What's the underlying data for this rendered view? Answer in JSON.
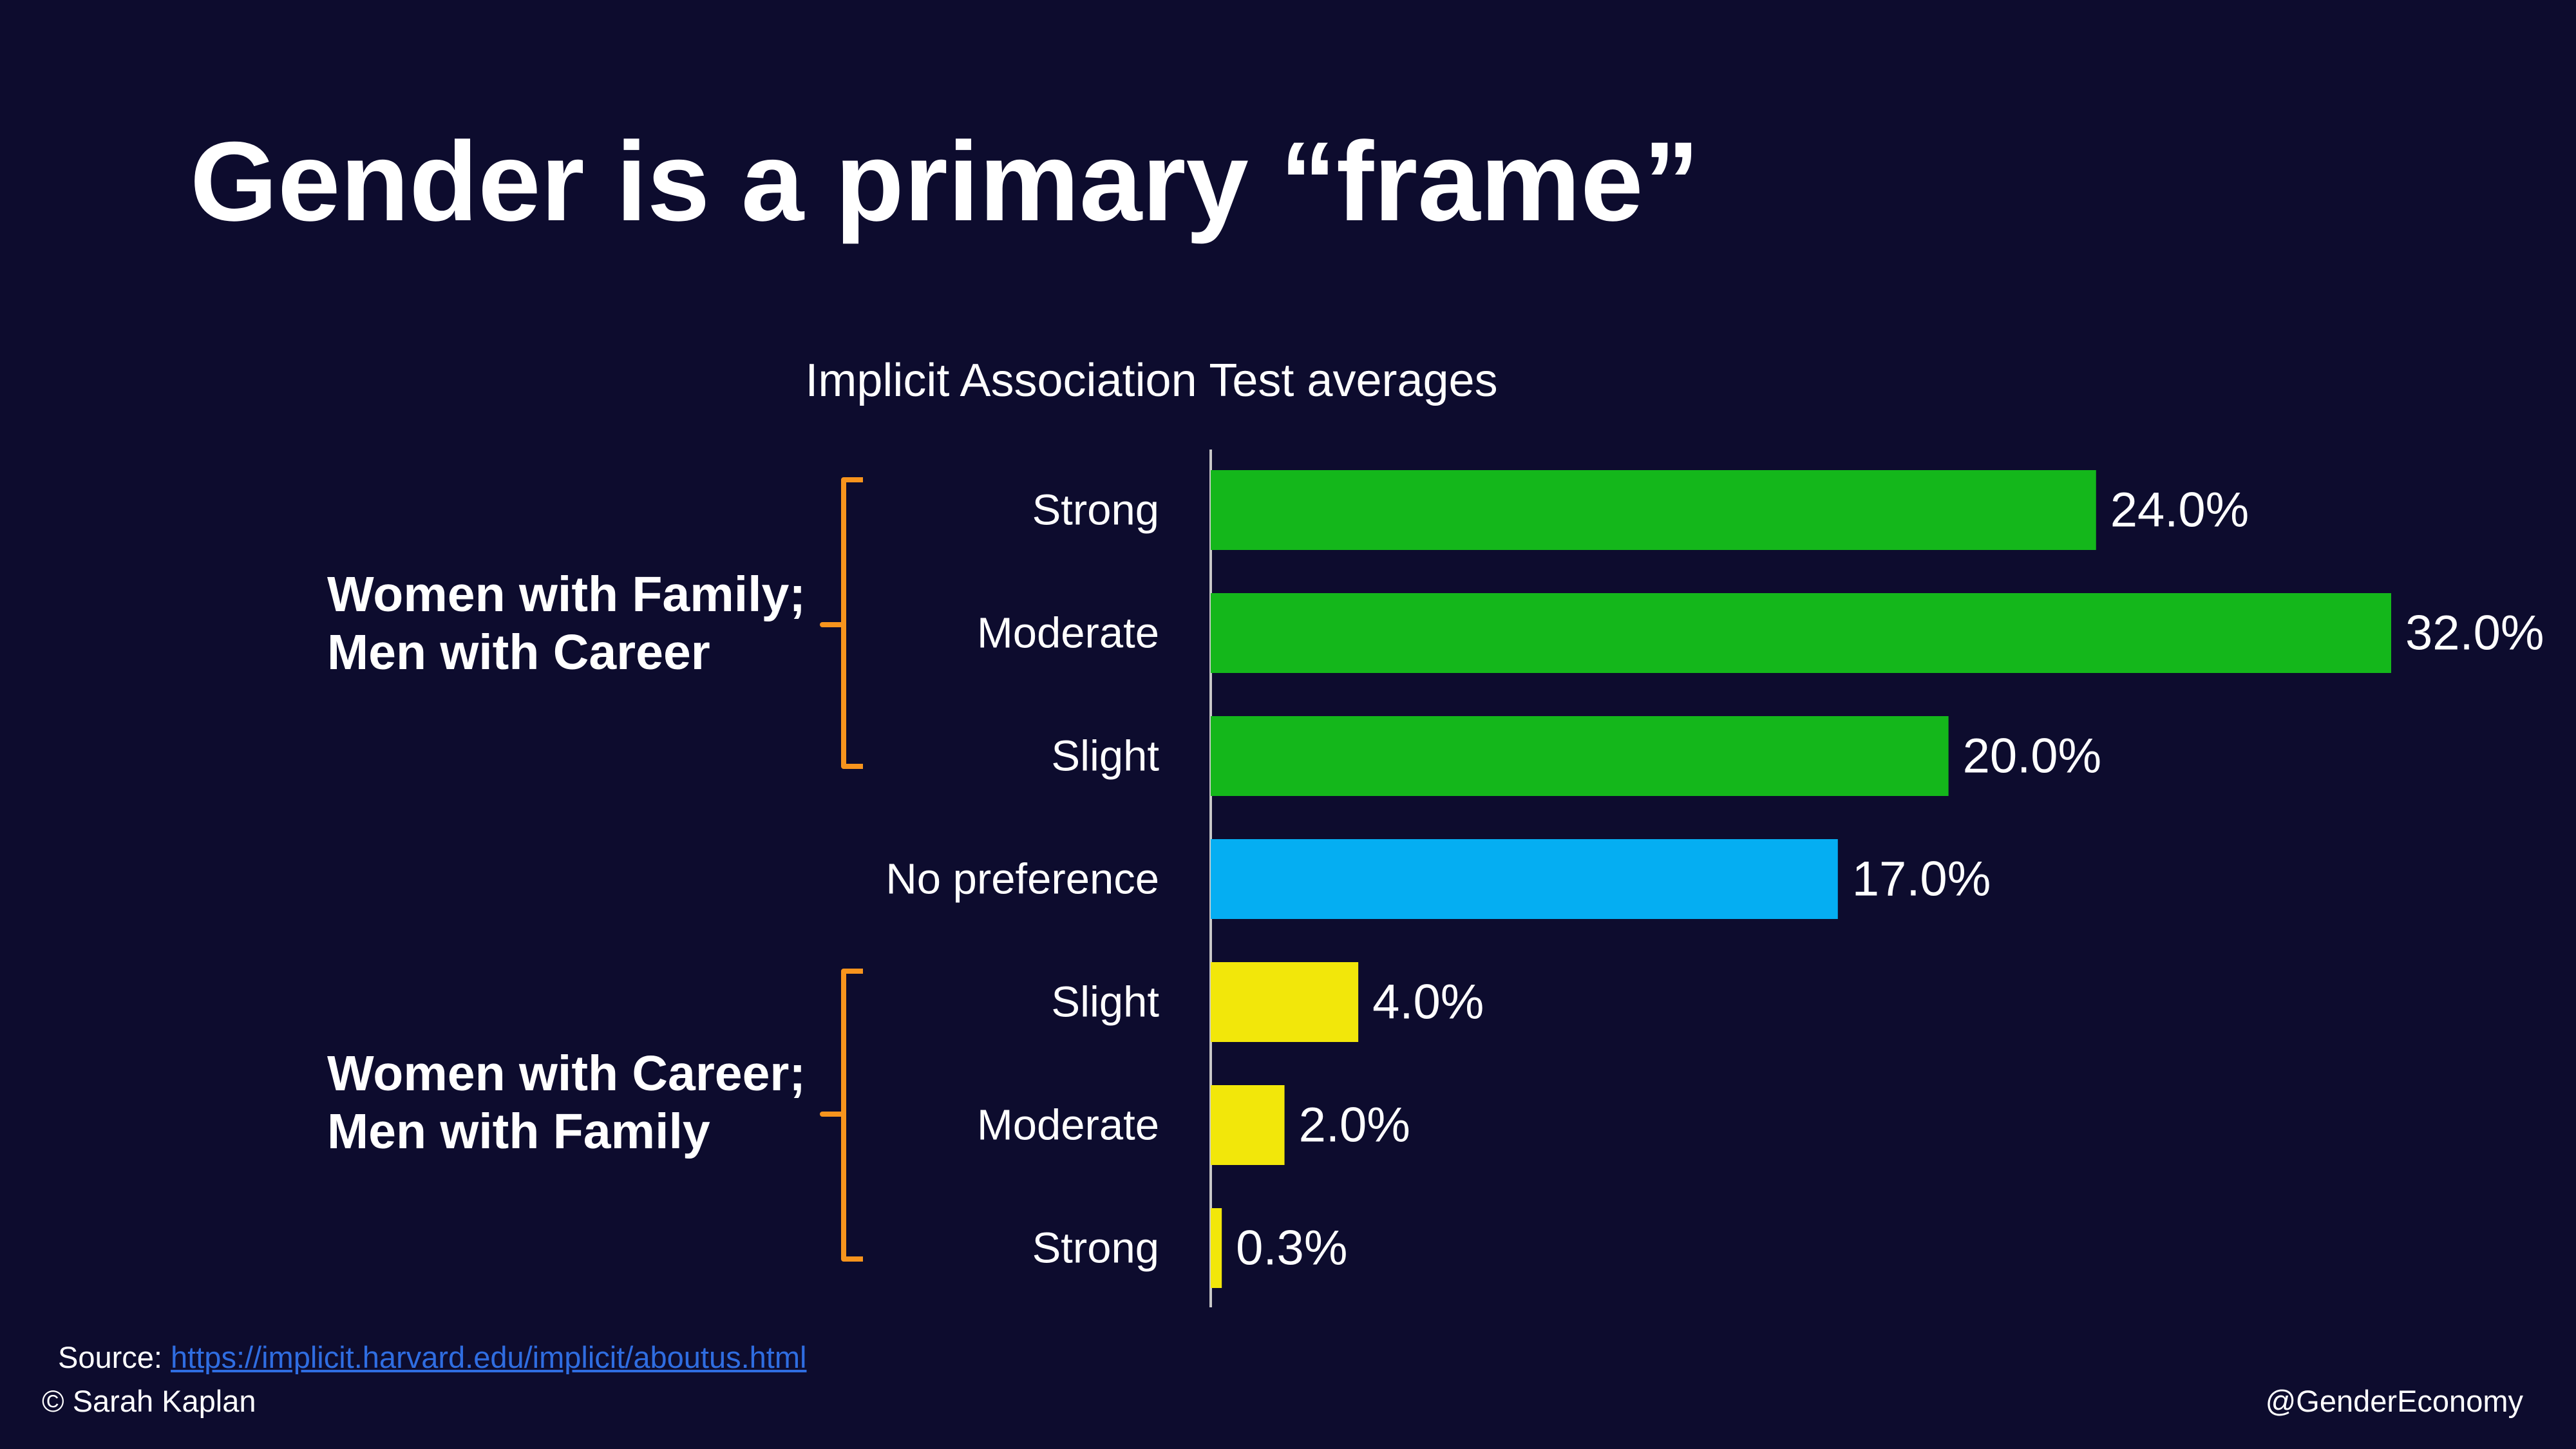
{
  "title": "Gender is a primary “frame”",
  "groups": [
    {
      "line1": "Women with Family;",
      "line2": "Men with Career"
    },
    {
      "line1": "Women with Career;",
      "line2": "Men with Family"
    }
  ],
  "source": {
    "prefix": "Source: ",
    "url": "https://implicit.harvard.edu/implicit/aboutus.html"
  },
  "copyright": "© Sarah Kaplan",
  "handle": "@GenderEconomy",
  "colors": {
    "background": "#0d0c2e",
    "family_career": "#14b71b",
    "no_preference": "#05aef2",
    "career_family": "#f2e70a",
    "bracket": "#f7941d",
    "link": "#2f6de1"
  },
  "chart_data": {
    "type": "bar",
    "orientation": "horizontal",
    "title": "Implicit Association Test averages",
    "categories": [
      "Strong",
      "Moderate",
      "Slight",
      "No preference",
      "Slight",
      "Moderate",
      "Strong"
    ],
    "values": [
      24.0,
      32.0,
      20.0,
      17.0,
      4.0,
      2.0,
      0.3
    ],
    "data_labels": [
      "24.0%",
      "32.0%",
      "20.0%",
      "17.0%",
      "4.0%",
      "2.0%",
      "0.3%"
    ],
    "bar_colors": [
      "#14b71b",
      "#14b71b",
      "#14b71b",
      "#05aef2",
      "#f2e70a",
      "#f2e70a",
      "#f2e70a"
    ],
    "xlim": [
      0,
      32
    ],
    "grid": false,
    "legend": "none"
  }
}
